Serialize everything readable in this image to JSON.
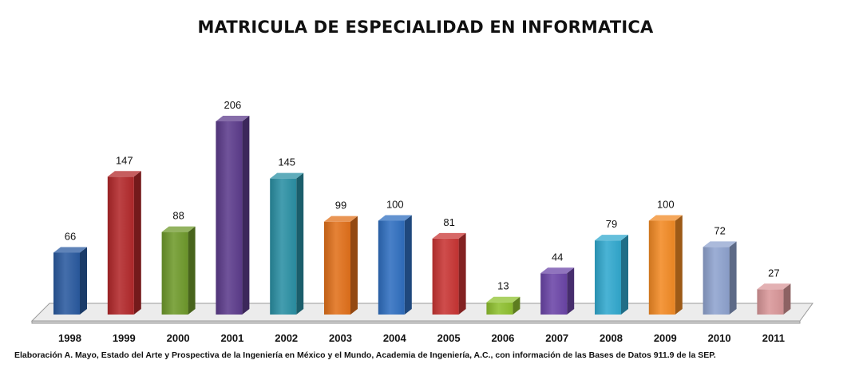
{
  "chart_data": {
    "type": "bar",
    "title": "MATRICULA DE ESPECIALIDAD EN INFORMATICA",
    "xlabel": "",
    "ylabel": "",
    "ylim": [
      0,
      220
    ],
    "grid": false,
    "legend": "none",
    "categories": [
      "1998",
      "1999",
      "2000",
      "2001",
      "2002",
      "2003",
      "2004",
      "2005",
      "2006",
      "2007",
      "2008",
      "2009",
      "2010",
      "2011"
    ],
    "values": [
      66,
      147,
      88,
      206,
      145,
      99,
      100,
      81,
      13,
      44,
      79,
      100,
      72,
      27
    ],
    "colors": [
      "#2a5aa0",
      "#b3282a",
      "#6f9a2b",
      "#5d3c8c",
      "#2a90a4",
      "#e2711b",
      "#2f6fc0",
      "#c93534",
      "#8fc12f",
      "#6b45a8",
      "#31a9cf",
      "#f28a24",
      "#8fa3cf",
      "#d99799"
    ],
    "source": "Elaboración A. Mayo, Estado del Arte y Prospectiva de la Ingeniería en México y el Mundo, Academia de Ingeniería, A.C., con información de las Bases de Datos  911.9 de la SEP."
  }
}
